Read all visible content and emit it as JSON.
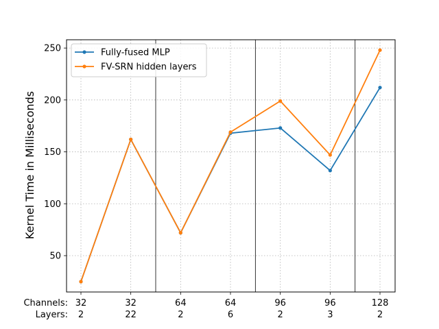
{
  "chart_data": {
    "type": "line",
    "ylabel": "Kernel Time in Milliseconds",
    "ylim": [
      15,
      258
    ],
    "yticks": [
      50,
      100,
      150,
      200,
      250
    ],
    "grid": true,
    "legend_placement": "top-left",
    "row_labels": [
      "Channels:",
      "Layers:"
    ],
    "categories": [
      {
        "channels": "32",
        "layers": "2"
      },
      {
        "channels": "32",
        "layers": "22"
      },
      {
        "channels": "64",
        "layers": "2"
      },
      {
        "channels": "64",
        "layers": "6"
      },
      {
        "channels": "96",
        "layers": "2"
      },
      {
        "channels": "96",
        "layers": "3"
      },
      {
        "channels": "128",
        "layers": "2"
      }
    ],
    "group_separators_after": [
      1,
      3,
      5
    ],
    "series": [
      {
        "name": "Fully-fused MLP",
        "color": "#1f77b4",
        "values": [
          25,
          162,
          72,
          168,
          173,
          132,
          212
        ]
      },
      {
        "name": "FV-SRN hidden layers",
        "color": "#ff7f0e",
        "values": [
          25,
          162,
          72,
          169,
          199,
          147,
          248
        ]
      }
    ]
  }
}
